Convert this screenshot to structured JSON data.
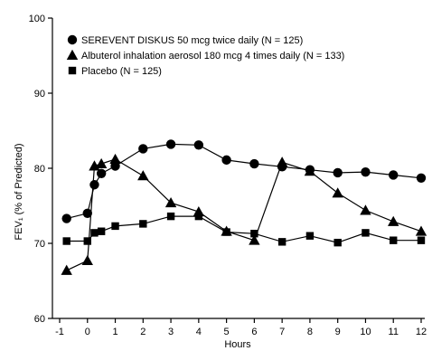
{
  "chart_data": {
    "type": "line",
    "xlabel": "Hours",
    "ylabel": "FEV₁ (% of Predicted)",
    "xlim": [
      -1,
      12
    ],
    "ylim": [
      60,
      100
    ],
    "x_ticks": [
      -1,
      0,
      1,
      2,
      3,
      4,
      5,
      6,
      7,
      8,
      9,
      10,
      11,
      12
    ],
    "y_ticks": [
      60,
      70,
      80,
      90,
      100
    ],
    "grid": false,
    "legend_position": "top-left",
    "series": [
      {
        "name": "SEREVENT DISKUS 50 mcg twice daily (N = 125)",
        "marker": "circle",
        "points": [
          [
            -0.75,
            73.3
          ],
          [
            0,
            74
          ],
          [
            0.25,
            77.8
          ],
          [
            0.5,
            79.3
          ],
          [
            1,
            80.3
          ],
          [
            2,
            82.6
          ],
          [
            3,
            83.2
          ],
          [
            4,
            83.1
          ],
          [
            5,
            81.1
          ],
          [
            6,
            80.6
          ],
          [
            7,
            80.2
          ],
          [
            8,
            79.8
          ],
          [
            9,
            79.4
          ],
          [
            10,
            79.5
          ],
          [
            11,
            79.1
          ],
          [
            12,
            78.7
          ]
        ]
      },
      {
        "name": "Albuterol inhalation aerosol 180 mcg 4 times daily (N = 133)",
        "marker": "triangle",
        "points": [
          [
            -0.75,
            66.4
          ],
          [
            0,
            67.7
          ],
          [
            0.25,
            80.3
          ],
          [
            0.5,
            80.6
          ],
          [
            1,
            81.2
          ],
          [
            2,
            79
          ],
          [
            3,
            75.4
          ],
          [
            4,
            74.2
          ],
          [
            5,
            71.6
          ],
          [
            6,
            70.4
          ],
          [
            7,
            80.8
          ],
          [
            8,
            79.6
          ],
          [
            9,
            76.7
          ],
          [
            10,
            74.4
          ],
          [
            11,
            72.9
          ],
          [
            12,
            71.6
          ]
        ]
      },
      {
        "name": "Placebo (N = 125)",
        "marker": "square",
        "points": [
          [
            -0.75,
            70.3
          ],
          [
            0,
            70.3
          ],
          [
            0.25,
            71.4
          ],
          [
            0.5,
            71.6
          ],
          [
            1,
            72.3
          ],
          [
            2,
            72.6
          ],
          [
            3,
            73.6
          ],
          [
            4,
            73.6
          ],
          [
            5,
            71.5
          ],
          [
            6,
            71.3
          ],
          [
            7,
            70.2
          ],
          [
            8,
            71
          ],
          [
            9,
            70.1
          ],
          [
            10,
            71.4
          ],
          [
            11,
            70.4
          ],
          [
            12,
            70.4
          ]
        ]
      }
    ]
  }
}
